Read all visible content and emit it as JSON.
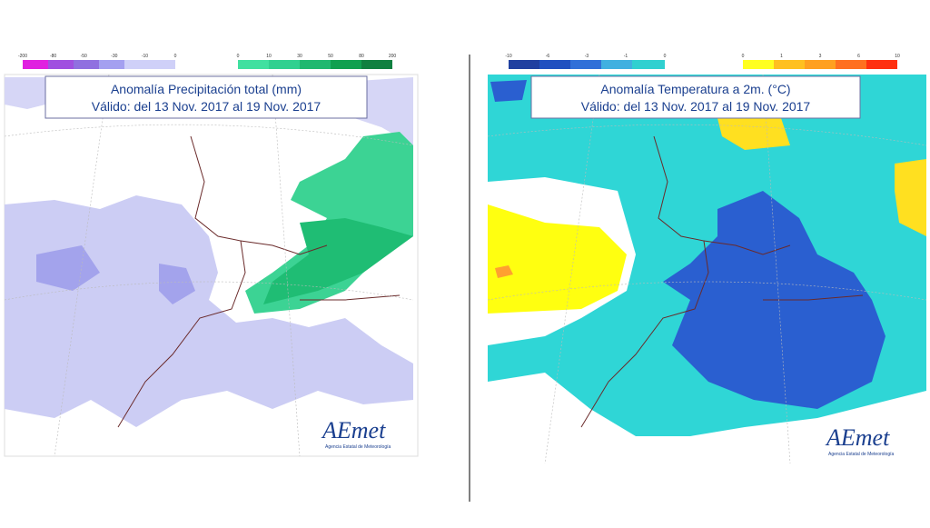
{
  "left_map": {
    "title": "Anomalía Precipitación total (mm)",
    "subtitle": "Válido: del 13 Nov. 2017 al 19 Nov. 2017",
    "legend_negative": [
      "-200",
      "-80",
      "-50",
      "-30",
      "-10",
      "0"
    ],
    "legend_positive": [
      "0",
      "10",
      "30",
      "50",
      "80",
      "200"
    ],
    "logo": "AEmet",
    "logo_caption": "Agencia Estatal de Meteorología"
  },
  "right_map": {
    "title": "Anomalía Temperatura a 2m. (°C)",
    "subtitle": "Válido: del 13 Nov. 2017 al 19 Nov. 2017",
    "legend_negative": [
      "-10",
      "-6",
      "-3",
      "-1",
      "0"
    ],
    "legend_positive": [
      "0",
      "1",
      "3",
      "6",
      "10"
    ],
    "logo": "AEmet",
    "logo_caption": "Agencia Estatal de Meteorología"
  }
}
